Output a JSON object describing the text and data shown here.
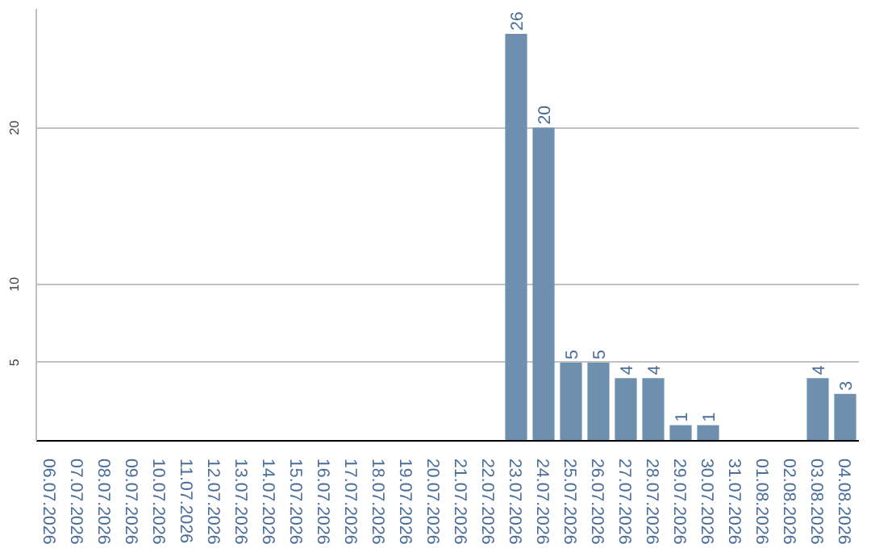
{
  "chart_data": {
    "type": "bar",
    "categories": [
      "06.07.2026",
      "07.07.2026",
      "08.07.2026",
      "09.07.2026",
      "10.07.2026",
      "11.07.2026",
      "12.07.2026",
      "13.07.2026",
      "14.07.2026",
      "15.07.2026",
      "16.07.2026",
      "17.07.2026",
      "18.07.2026",
      "19.07.2026",
      "20.07.2026",
      "21.07.2026",
      "22.07.2026",
      "23.07.2026",
      "24.07.2026",
      "25.07.2026",
      "26.07.2026",
      "27.07.2026",
      "28.07.2026",
      "29.07.2026",
      "30.07.2026",
      "31.07.2026",
      "01.08.2026",
      "02.08.2026",
      "03.08.2026",
      "04.08.2026"
    ],
    "values": [
      0,
      0,
      0,
      0,
      0,
      0,
      0,
      0,
      0,
      0,
      0,
      0,
      0,
      0,
      0,
      0,
      0,
      26,
      20,
      5,
      5,
      4,
      4,
      1,
      1,
      0,
      0,
      0,
      4,
      3
    ],
    "value_labels": [
      null,
      null,
      null,
      null,
      null,
      null,
      null,
      null,
      null,
      null,
      null,
      null,
      null,
      null,
      null,
      null,
      null,
      "26",
      "20",
      "5",
      "5",
      "4",
      "4",
      "1",
      "1",
      null,
      null,
      null,
      "4",
      "3"
    ],
    "color": "#6f8faf",
    "ylim": [
      0,
      27.6
    ],
    "yticks": [
      5,
      10,
      20
    ],
    "grid": "y"
  }
}
